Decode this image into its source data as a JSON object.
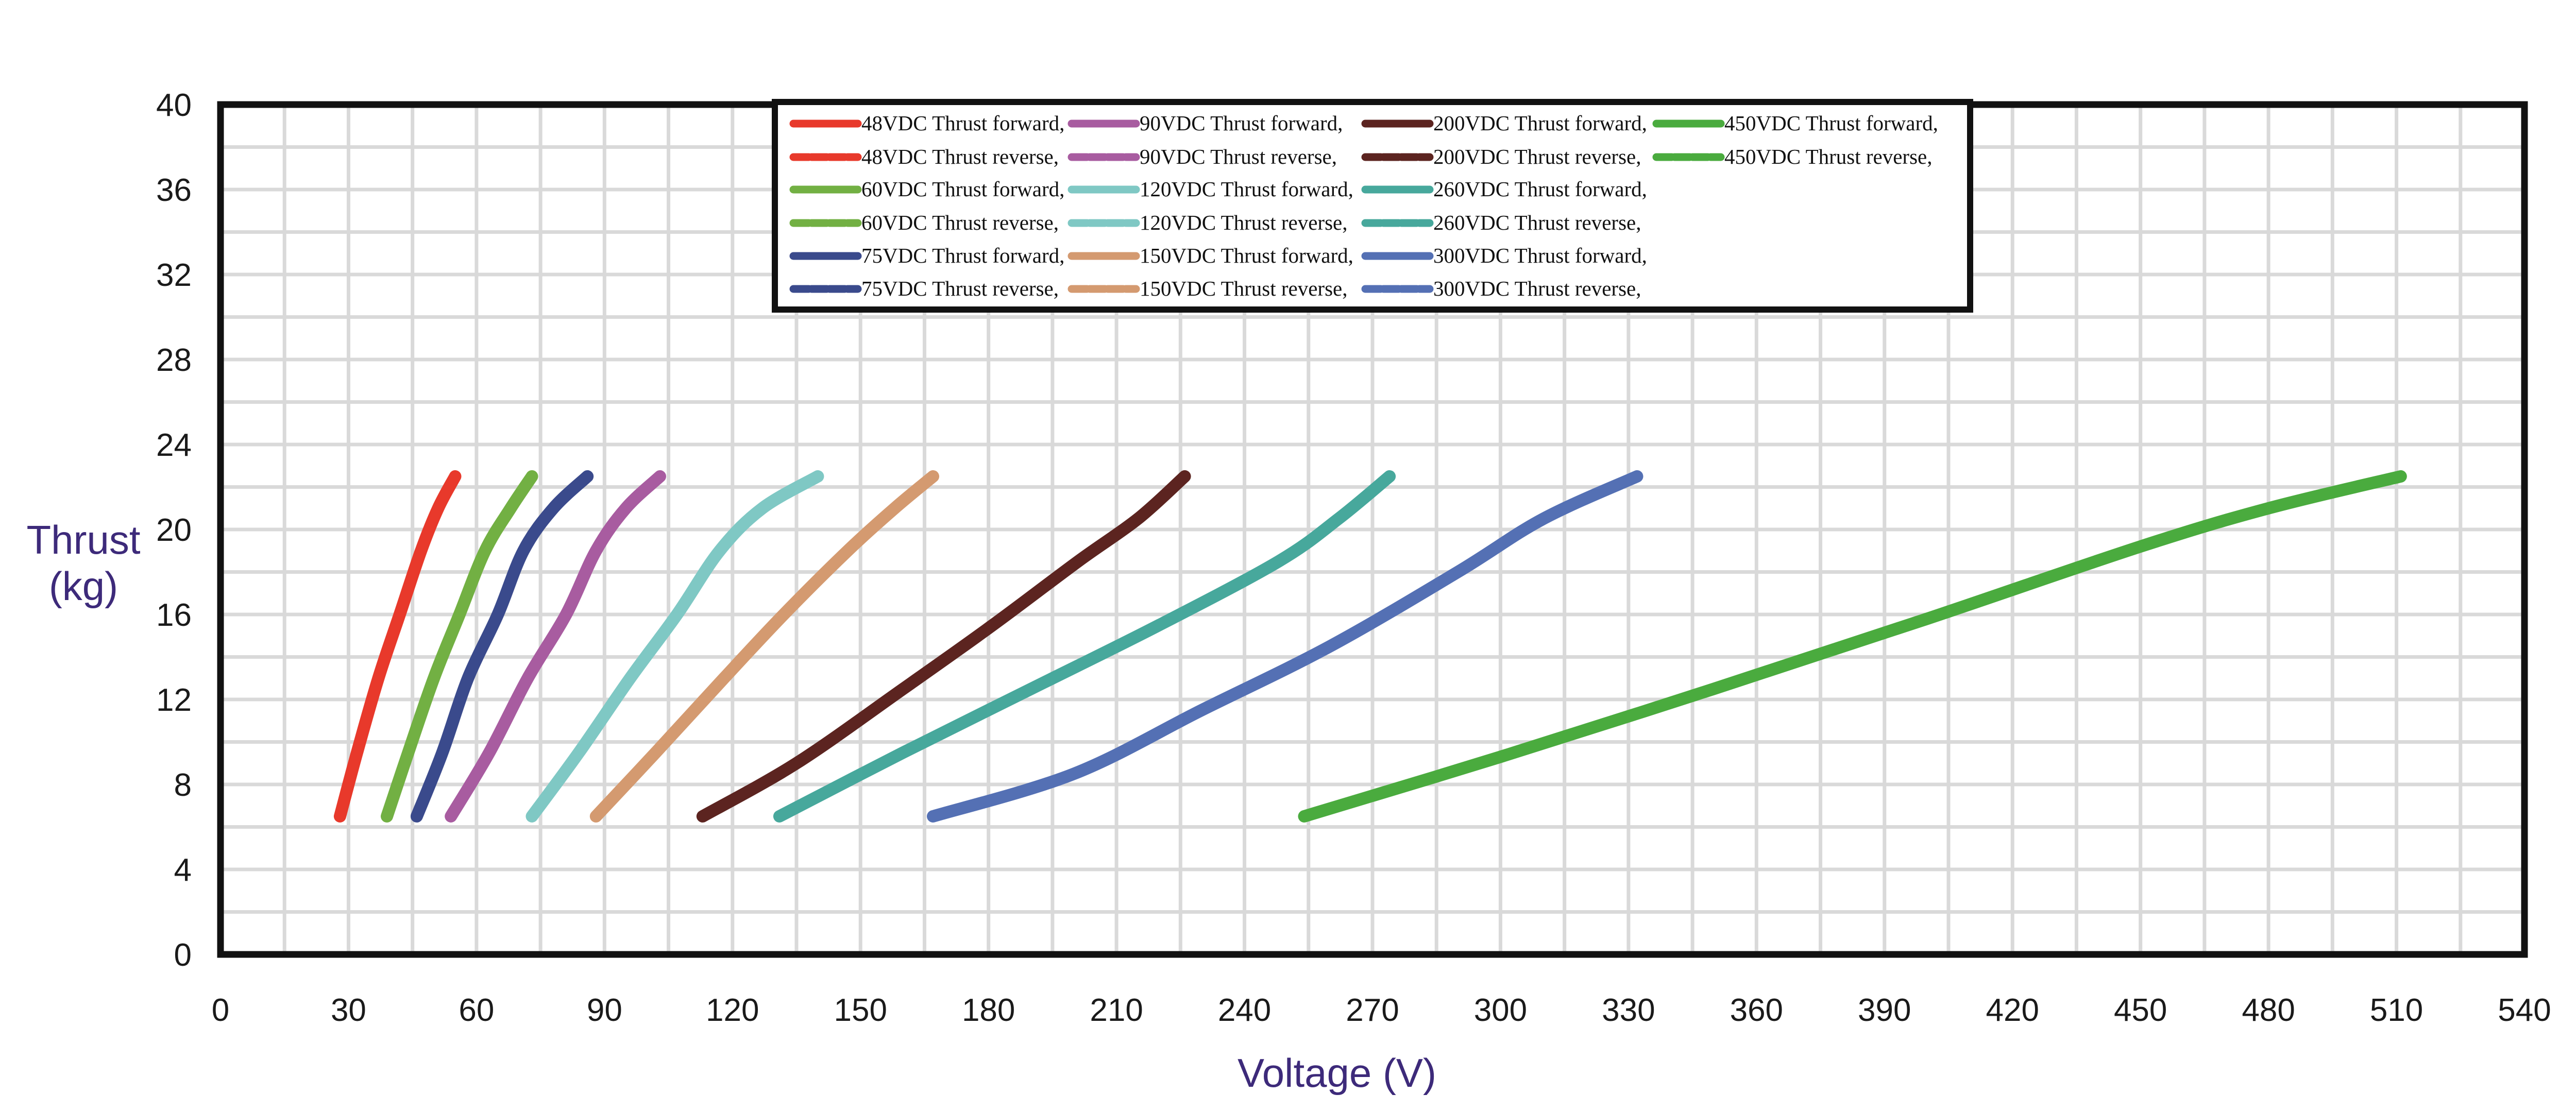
{
  "chart_data": {
    "type": "line",
    "title": "",
    "xlabel": "Voltage (V)",
    "ylabel_lines": [
      "Thrust",
      "(kg)"
    ],
    "xlim": [
      0,
      540
    ],
    "ylim": [
      0,
      40
    ],
    "xticks": [
      0,
      30,
      60,
      90,
      120,
      150,
      180,
      210,
      240,
      270,
      300,
      330,
      360,
      390,
      420,
      450,
      480,
      510,
      540
    ],
    "yticks": [
      0,
      4,
      8,
      12,
      16,
      20,
      24,
      28,
      32,
      36,
      40
    ],
    "x_minor_step": 15,
    "y_minor_step": 2,
    "grid": true,
    "legend_position": "top-center",
    "series": [
      {
        "name": "48VDC Thrust forward,",
        "color": "#e8392b",
        "x": [
          28,
          32,
          37,
          42,
          47,
          51,
          55
        ],
        "y": [
          6.5,
          9.5,
          13,
          16,
          19,
          21,
          22.5
        ]
      },
      {
        "name": "48VDC Thrust reverse,",
        "color": "#e8392b",
        "x": [
          28,
          32,
          37,
          42,
          47,
          51,
          55
        ],
        "y": [
          6.5,
          9.5,
          13,
          16,
          19,
          21,
          22.5
        ]
      },
      {
        "name": "60VDC Thrust forward,",
        "color": "#72b043",
        "x": [
          39,
          44,
          50,
          56,
          62,
          68,
          73
        ],
        "y": [
          6.5,
          9.5,
          13,
          16,
          19,
          21,
          22.5
        ]
      },
      {
        "name": "60VDC Thrust reverse,",
        "color": "#72b043",
        "x": [
          39,
          44,
          50,
          56,
          62,
          68,
          73
        ],
        "y": [
          6.5,
          9.5,
          13,
          16,
          19,
          21,
          22.5
        ]
      },
      {
        "name": "75VDC Thrust forward,",
        "color": "#3a4a8c",
        "x": [
          46,
          52,
          58,
          65,
          71,
          78,
          86
        ],
        "y": [
          6.5,
          9.5,
          13,
          16,
          19,
          21,
          22.5
        ]
      },
      {
        "name": "75VDC Thrust reverse,",
        "color": "#3a4a8c",
        "x": [
          46,
          52,
          58,
          65,
          71,
          78,
          86
        ],
        "y": [
          6.5,
          9.5,
          13,
          16,
          19,
          21,
          22.5
        ]
      },
      {
        "name": "90VDC   Thrust forward,",
        "color": "#a85ca0",
        "x": [
          54,
          63,
          72,
          81,
          88,
          95,
          103
        ],
        "y": [
          6.5,
          9.5,
          13,
          16,
          19,
          21,
          22.5
        ]
      },
      {
        "name": "90VDC   Thrust reverse,",
        "color": "#a85ca0",
        "x": [
          54,
          63,
          72,
          81,
          88,
          95,
          103
        ],
        "y": [
          6.5,
          9.5,
          13,
          16,
          19,
          21,
          22.5
        ]
      },
      {
        "name": "120VDC Thrust forward,",
        "color": "#7fc8c4",
        "x": [
          73,
          84,
          96,
          107,
          117,
          127,
          140
        ],
        "y": [
          6.5,
          9.5,
          13,
          16,
          19,
          21,
          22.5
        ]
      },
      {
        "name": "120VDC Thrust reverse,",
        "color": "#7fc8c4",
        "x": [
          73,
          84,
          96,
          107,
          117,
          127,
          140
        ],
        "y": [
          6.5,
          9.5,
          13,
          16,
          19,
          21,
          22.5
        ]
      },
      {
        "name": "150VDC Thrust forward,",
        "color": "#d49a70",
        "x": [
          88,
          102,
          118,
          132,
          147,
          158,
          167
        ],
        "y": [
          6.5,
          9.5,
          13,
          16,
          19,
          21,
          22.5
        ]
      },
      {
        "name": "150VDC Thrust reverse,",
        "color": "#d49a70",
        "x": [
          88,
          102,
          118,
          132,
          147,
          158,
          167
        ],
        "y": [
          6.5,
          9.5,
          13,
          16,
          19,
          21,
          22.5
        ]
      },
      {
        "name": "200VDC Thrust forward,",
        "color": "#5c2420",
        "x": [
          113,
          135,
          160,
          181,
          201,
          215,
          226
        ],
        "y": [
          6.5,
          9,
          12.5,
          15.5,
          18.5,
          20.5,
          22.5
        ]
      },
      {
        "name": "200VDC Thrust reverse,",
        "color": "#5c2420",
        "x": [
          113,
          135,
          160,
          181,
          201,
          215,
          226
        ],
        "y": [
          6.5,
          9,
          12.5,
          15.5,
          18.5,
          20.5,
          22.5
        ]
      },
      {
        "name": "260VDC Thrust forward,",
        "color": "#47a89c",
        "x": [
          131,
          160,
          190,
          220,
          248,
          262,
          274
        ],
        "y": [
          6.5,
          9.5,
          12.5,
          15.5,
          18.5,
          20.5,
          22.5
        ]
      },
      {
        "name": "260VDC Thrust reverse,",
        "color": "#47a89c",
        "x": [
          131,
          160,
          190,
          220,
          248,
          262,
          274
        ],
        "y": [
          6.5,
          9.5,
          12.5,
          15.5,
          18.5,
          20.5,
          22.5
        ]
      },
      {
        "name": "300VDC Thrust forward,",
        "color": "#5470b4",
        "x": [
          167,
          200,
          230,
          260,
          290,
          310,
          332
        ],
        "y": [
          6.5,
          8.5,
          11.5,
          14.5,
          18,
          20.5,
          22.5
        ]
      },
      {
        "name": "300VDC Thrust reverse,",
        "color": "#5470b4",
        "x": [
          167,
          200,
          230,
          260,
          290,
          310,
          332
        ],
        "y": [
          6.5,
          8.5,
          11.5,
          14.5,
          18,
          20.5,
          22.5
        ]
      },
      {
        "name": "450VDC  Thrust forward,",
        "color": "#4aab3e",
        "x": [
          254,
          300,
          350,
          400,
          450,
          480,
          511
        ],
        "y": [
          6.5,
          9.3,
          12.5,
          15.8,
          19.2,
          21.0,
          22.5
        ]
      },
      {
        "name": "450VDC  Thrust reverse,",
        "color": "#4aab3e",
        "x": [
          254,
          300,
          350,
          400,
          450,
          480,
          511
        ],
        "y": [
          6.5,
          9.3,
          12.5,
          15.8,
          19.2,
          21.0,
          22.5
        ]
      }
    ]
  }
}
